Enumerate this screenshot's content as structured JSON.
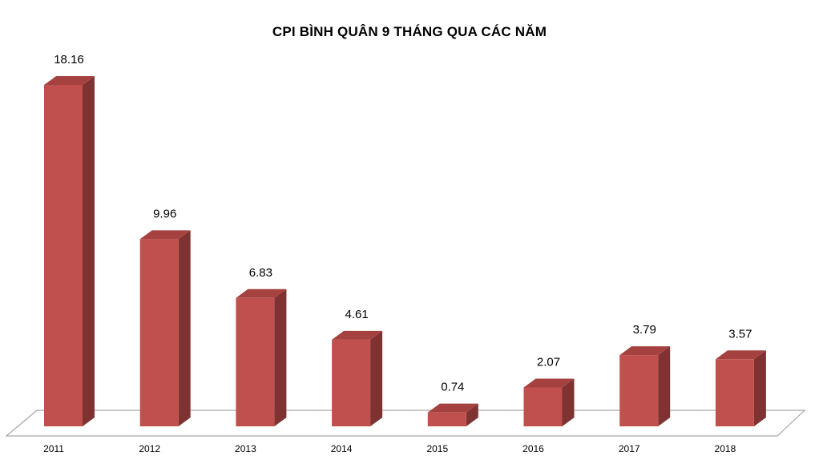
{
  "chart_data": {
    "type": "bar",
    "title": "CPI BÌNH QUÂN 9 THÁNG QUA CÁC NĂM",
    "categories": [
      "2011",
      "2012",
      "2013",
      "2014",
      "2015",
      "2016",
      "2017",
      "2018"
    ],
    "series": [
      {
        "values": [
          18.16,
          9.96,
          6.83,
          4.61,
          0.74,
          2.07,
          3.79,
          3.57
        ]
      }
    ],
    "data_labels": [
      "18.16",
      "9.96",
      "6.83",
      "4.61",
      "0.74",
      "2.07",
      "3.79",
      "3.57"
    ],
    "ylim": [
      0,
      18.16
    ],
    "grid": false,
    "legend": "none",
    "style": "3d-column",
    "colors": {
      "front": "#C0504D",
      "side": "#7E3231",
      "top": "#A54240",
      "floor_line": "#A6A6A6"
    }
  }
}
